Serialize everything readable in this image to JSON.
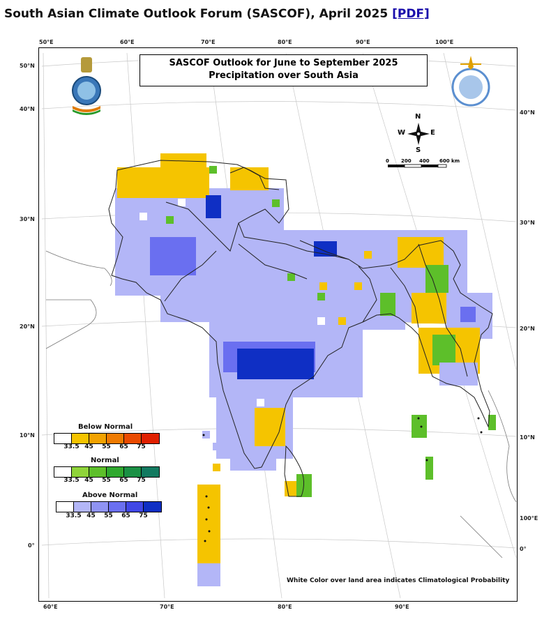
{
  "heading": {
    "text": "South Asian Climate Outlook Forum (SASCOF), April 2025",
    "link_label": "[PDF]"
  },
  "map": {
    "title_line1": "SASCOF Outlook for June to September 2025",
    "title_line2": "Precipitation over South Asia",
    "footnote": "White Color over land area indicates Climatological Probability",
    "top_lon_ticks": [
      "50°E",
      "60°E",
      "70°E",
      "80°E",
      "90°E",
      "100°E"
    ],
    "bottom_lon_ticks": [
      "60°E",
      "70°E",
      "80°E",
      "90°E"
    ],
    "left_lat_ticks": [
      "50°N",
      "40°N",
      "30°N",
      "20°N",
      "10°N",
      "0°"
    ],
    "right_lat_ticks": [
      "40°N",
      "30°N",
      "20°N",
      "10°N",
      "100°E",
      "0°"
    ],
    "compass": {
      "n": "N",
      "s": "S",
      "e": "E",
      "w": "W"
    },
    "scale_bar": [
      "0",
      "200",
      "400",
      "600 km"
    ],
    "colors": {
      "below_normal_main": "#f5c400",
      "normal_main": "#5dbf2a",
      "above_normal_light": "#b3b6f7",
      "above_normal_mid": "#6a6ff0",
      "above_normal_dark": "#0f2fc4"
    },
    "legend": [
      {
        "title": "Below Normal",
        "labels": [
          "33.5",
          "45",
          "55",
          "65",
          "75"
        ],
        "colors": [
          "#ffffff",
          "#f5c400",
          "#f2a200",
          "#ef7a00",
          "#ea4a00",
          "#e02000"
        ]
      },
      {
        "title": "Normal",
        "labels": [
          "33.5",
          "45",
          "55",
          "65",
          "75"
        ],
        "colors": [
          "#ffffff",
          "#8fd43a",
          "#5dbf2a",
          "#2fa82e",
          "#1a9044",
          "#127a60"
        ]
      },
      {
        "title": "Above Normal",
        "labels": [
          "33.5",
          "45",
          "55",
          "65",
          "75"
        ],
        "colors": [
          "#ffffff",
          "#b3b6f7",
          "#8f93f3",
          "#6a6ff0",
          "#4147e6",
          "#0f2fc4"
        ]
      }
    ]
  }
}
